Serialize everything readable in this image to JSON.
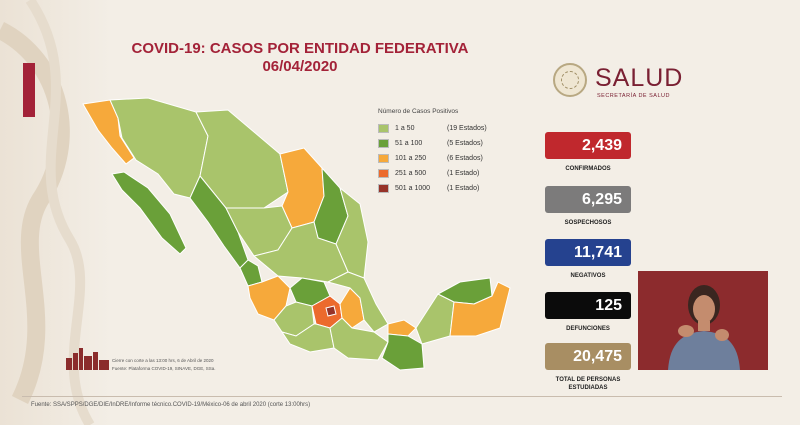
{
  "slide": {
    "title": "COVID-19: CASOS POR ENTIDAD FEDERATIVA",
    "date": "06/04/2020"
  },
  "legend": {
    "title": "Número de Casos Positivos",
    "items": [
      {
        "range": "1 a 50",
        "states": "(19 Estados)",
        "color": "#a9c46b"
      },
      {
        "range": "51 a 100",
        "states": "(5 Estados)",
        "color": "#6aa039"
      },
      {
        "range": "101 a 250",
        "states": "(6 Estados)",
        "color": "#f6a93b"
      },
      {
        "range": "251 a 500",
        "states": "(1 Estado)",
        "color": "#ec6a2d"
      },
      {
        "range": "501 a 1000",
        "states": "(1 Estado)",
        "color": "#963329"
      }
    ]
  },
  "logo": {
    "name": "SALUD",
    "subtitle": "SECRETARÍA DE SALUD"
  },
  "stats": [
    {
      "value": "2,439",
      "label": "CONFIRMADOS",
      "color": "#c0282d"
    },
    {
      "value": "6,295",
      "label": "SOSPECHOSOS",
      "color": "#7c7b7b"
    },
    {
      "value": "11,741",
      "label": "NEGATIVOS",
      "color": "#25428f"
    },
    {
      "value": "125",
      "label": "DEFUNCIONES",
      "color": "#0b0b0b"
    },
    {
      "value": "20,475",
      "label": "TOTAL DE PERSONAS ESTUDIADAS",
      "color": "#a88e63"
    }
  ],
  "notes": {
    "cutoff": "Cierre con corte a las 13:00 hrs, 6 de Abril de 2020",
    "source": "Fuente: Plataforma COVID-19, SINAVE, DGE, SSa."
  },
  "footer": {
    "text": "Fuente: SSA/SPPS/DGE/DIE/InDRE/Informe técnico.COVID-19/México-06 de abril 2020 (corte 13:00hrs)"
  },
  "map_colors": {
    "light_green": "#a9c46b",
    "dark_green": "#6aa039",
    "orange": "#f6a93b",
    "red_orange": "#ec6a2d",
    "dark_red": "#963329"
  }
}
